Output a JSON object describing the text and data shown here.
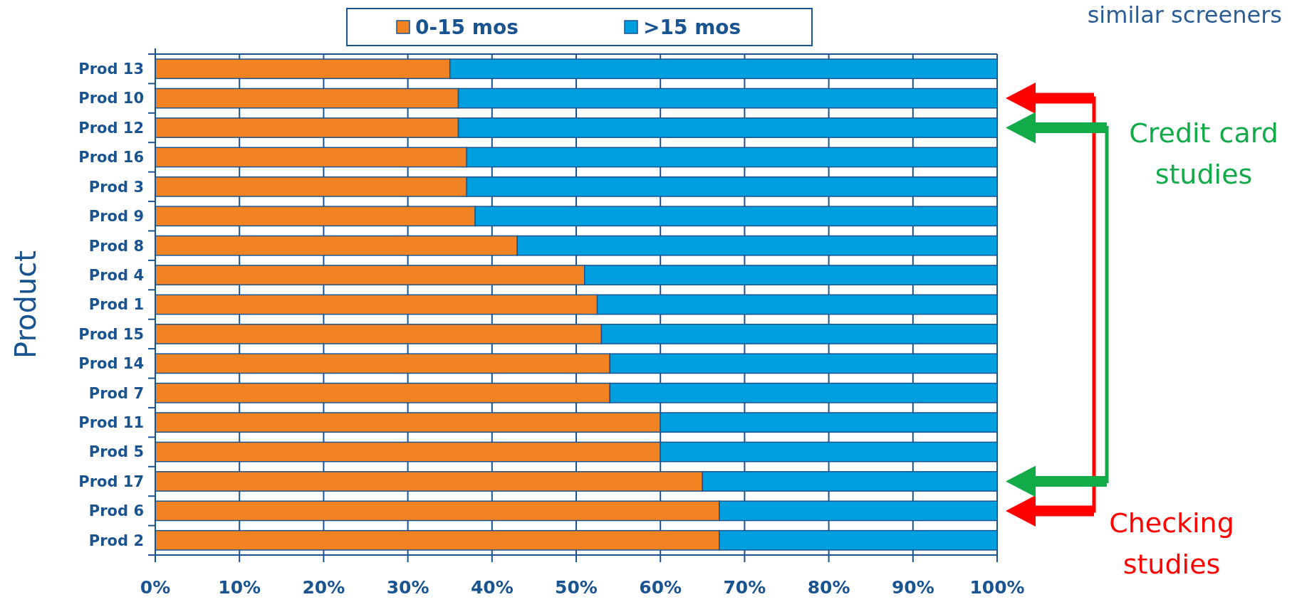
{
  "chart_data": {
    "type": "bar",
    "orientation": "horizontal",
    "stacked": true,
    "ylabel": "Product",
    "categories": [
      "Prod 13",
      "Prod 10",
      "Prod 12",
      "Prod 16",
      "Prod 3",
      "Prod 9",
      "Prod 8",
      "Prod 4",
      "Prod 1",
      "Prod 15",
      "Prod 14",
      "Prod 7",
      "Prod 11",
      "Prod 5",
      "Prod 17",
      "Prod 6",
      "Prod 2"
    ],
    "series": [
      {
        "name": "0-15 mos",
        "color": "#f28322",
        "values": [
          35,
          36,
          36,
          37,
          37,
          38,
          43,
          51,
          52.5,
          53,
          54,
          54,
          60,
          60,
          65,
          67,
          67
        ]
      },
      {
        "name": ">15 mos",
        "color": "#00a0e0",
        "values": [
          65,
          64,
          64,
          63,
          63,
          62,
          57,
          49,
          47.5,
          47,
          46,
          46,
          40,
          40,
          35,
          33,
          33
        ]
      }
    ],
    "xlim": [
      0,
      100
    ],
    "xticks": [
      {
        "value": 0,
        "label": "0%"
      },
      {
        "value": 10,
        "label": "10%"
      },
      {
        "value": 20,
        "label": "20%"
      },
      {
        "value": 30,
        "label": "30%"
      },
      {
        "value": 40,
        "label": "40%"
      },
      {
        "value": 50,
        "label": "50%"
      },
      {
        "value": 60,
        "label": "60%"
      },
      {
        "value": 70,
        "label": "70%"
      },
      {
        "value": 80,
        "label": "80%"
      },
      {
        "value": 90,
        "label": "90%"
      },
      {
        "value": 100,
        "label": "100%"
      }
    ],
    "grid": "x",
    "legend": "top",
    "annotations": [
      "similar screeners",
      "Credit card studies",
      "Checking studies"
    ]
  }
}
